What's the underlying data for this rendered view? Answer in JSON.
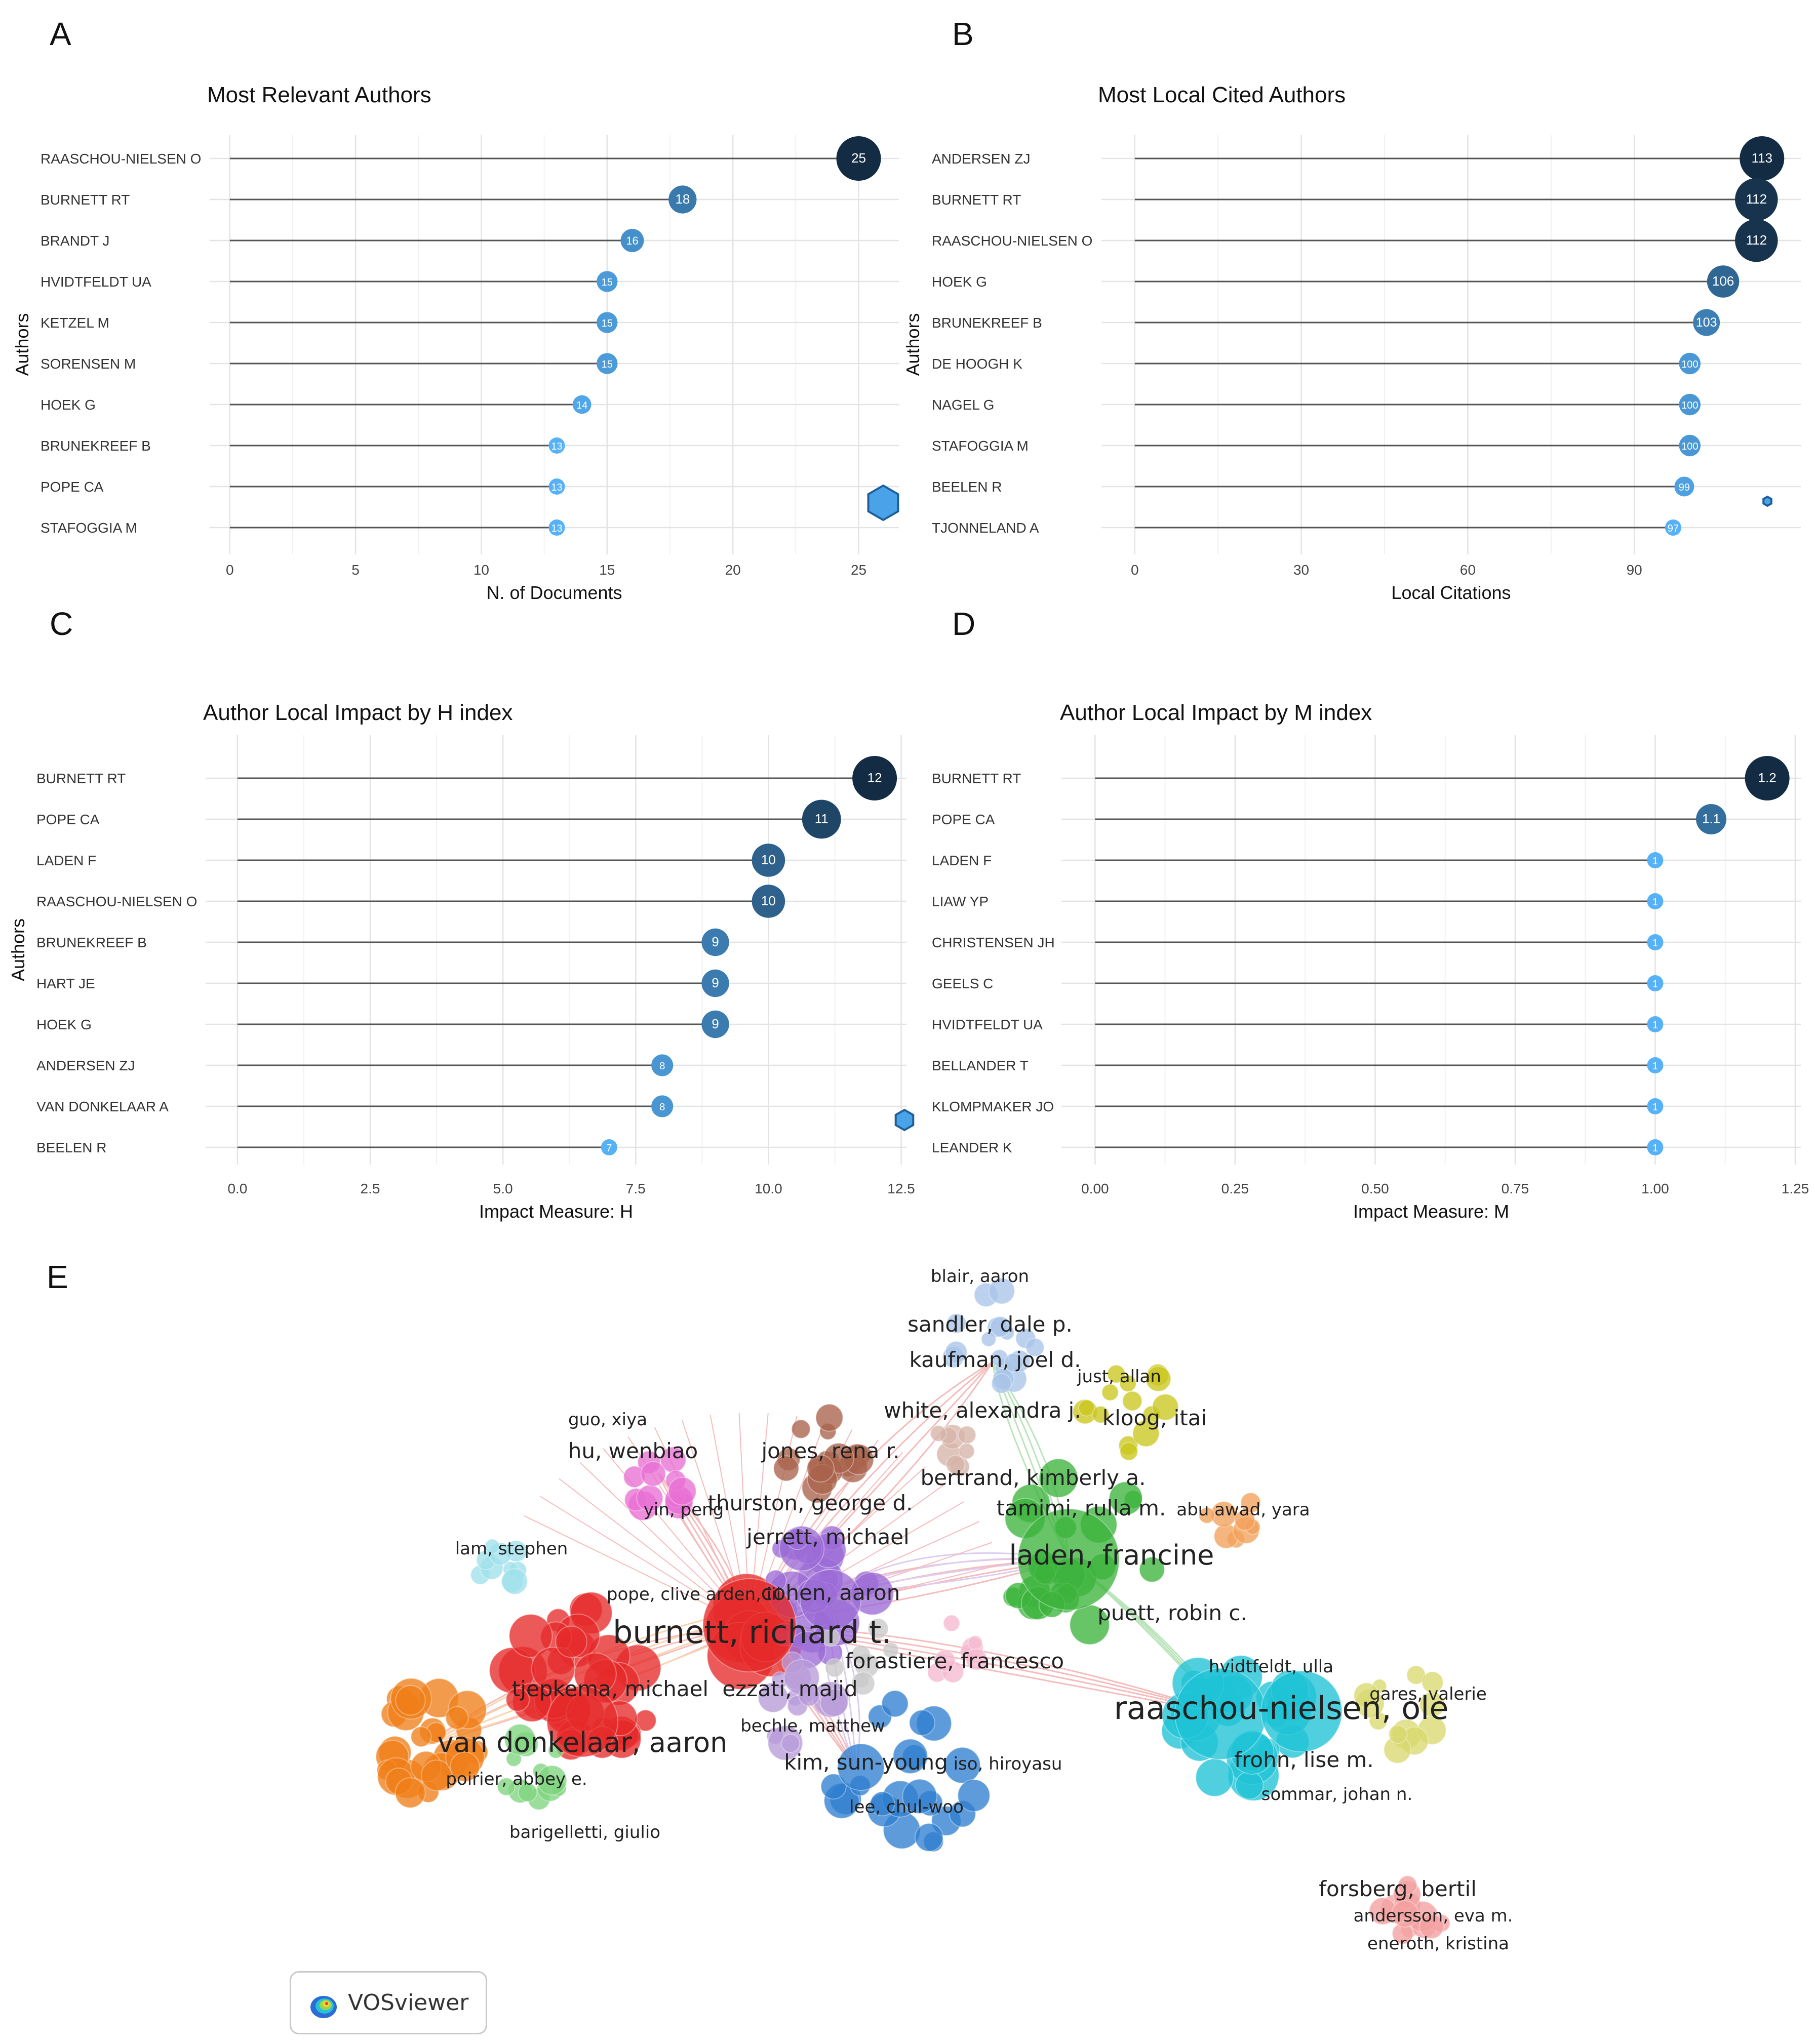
{
  "panel_letters": {
    "A": "A",
    "B": "B",
    "C": "C",
    "D": "D",
    "E": "E"
  },
  "colors": {
    "dark": "#132b43",
    "light": "#56b1f7",
    "segment": "#555555",
    "grid_major": "#e3e3e3",
    "grid_minor": "#f1f1f1"
  },
  "chart_data": [
    {
      "id": "A",
      "type": "lollipop",
      "title": "Most Relevant Authors",
      "xlabel": "N. of Documents",
      "ylabel": "Authors",
      "categories": [
        "RAASCHOU-NIELSEN O",
        "BURNETT RT",
        "BRANDT J",
        "HVIDTFELDT UA",
        "KETZEL M",
        "SORENSEN M",
        "HOEK G",
        "BRUNEKREEF B",
        "POPE CA",
        "STAFOGGIA M"
      ],
      "values": [
        25,
        18,
        16,
        15,
        15,
        15,
        14,
        13,
        13,
        13
      ],
      "value_labels": [
        "25",
        "18",
        "16",
        "15",
        "15",
        "15",
        "14",
        "13",
        "13",
        "13"
      ],
      "xlim": [
        -0.8,
        26.6
      ],
      "ticks": [
        0,
        5,
        10,
        15,
        20,
        25
      ],
      "tick_labels": [
        "0",
        "5",
        "10",
        "15",
        "20",
        "25"
      ],
      "color_range": [
        13,
        25
      ],
      "grid": true,
      "watermark_icon": "hexagon-logo-icon"
    },
    {
      "id": "B",
      "type": "lollipop",
      "title": "Most Local Cited Authors",
      "xlabel": "Local Citations",
      "ylabel": "Authors",
      "categories": [
        "ANDERSEN ZJ",
        "BURNETT RT",
        "RAASCHOU-NIELSEN O",
        "HOEK G",
        "BRUNEKREEF B",
        "DE HOOGH K",
        "NAGEL G",
        "STAFOGGIA M",
        "BEELEN R",
        "TJONNELAND A"
      ],
      "values": [
        113,
        112,
        112,
        106,
        103,
        100,
        100,
        100,
        99,
        97
      ],
      "value_labels": [
        "113",
        "112",
        "112",
        "106",
        "103",
        "100",
        "100",
        "100",
        "99",
        "97"
      ],
      "xlim": [
        -6,
        120
      ],
      "ticks": [
        0,
        30,
        60,
        90
      ],
      "tick_labels": [
        "0",
        "30",
        "60",
        "90"
      ],
      "color_range": [
        97,
        113
      ],
      "grid": true,
      "watermark_icon": "hexagon-logo-icon"
    },
    {
      "id": "C",
      "type": "lollipop",
      "title": "Author Local Impact by H index",
      "xlabel": "Impact Measure: H",
      "ylabel": "Authors",
      "categories": [
        "BURNETT RT",
        "POPE CA",
        "LADEN F",
        "RAASCHOU-NIELSEN O",
        "BRUNEKREEF B",
        "HART JE",
        "HOEK G",
        "ANDERSEN ZJ",
        "VAN DONKELAAR A",
        "BEELEN R"
      ],
      "values": [
        12,
        11,
        10,
        10,
        9,
        9,
        9,
        8,
        8,
        7
      ],
      "value_labels": [
        "12",
        "11",
        "10",
        "10",
        "9",
        "9",
        "9",
        "8",
        "8",
        "7"
      ],
      "xlim": [
        -0.6,
        12.6
      ],
      "ticks": [
        0,
        2.5,
        5,
        7.5,
        10,
        12.5
      ],
      "tick_labels": [
        "0.0",
        "2.5",
        "5.0",
        "7.5",
        "10.0",
        "12.5"
      ],
      "color_range": [
        7,
        12
      ],
      "grid": true,
      "watermark_icon": "hexagon-logo-icon"
    },
    {
      "id": "D",
      "type": "lollipop",
      "title": "Author Local Impact by M index",
      "xlabel": "Impact Measure: M",
      "ylabel": "",
      "categories": [
        "BURNETT RT",
        "POPE CA",
        "LADEN F",
        "LIAW YP",
        "CHRISTENSEN JH",
        "GEELS C",
        "HVIDTFELDT UA",
        "BELLANDER T",
        "KLOMPMAKER JO",
        "LEANDER K"
      ],
      "values": [
        1.2,
        1.1,
        1,
        1,
        1,
        1,
        1,
        1,
        1,
        1
      ],
      "value_labels": [
        "1.2",
        "1.1",
        "1",
        "1",
        "1",
        "1",
        "1",
        "1",
        "1",
        "1"
      ],
      "xlim": [
        -0.06,
        1.26
      ],
      "ticks": [
        0,
        0.25,
        0.5,
        0.75,
        1,
        1.25
      ],
      "tick_labels": [
        "0.00",
        "0.25",
        "0.50",
        "0.75",
        "1.00",
        "1.25"
      ],
      "color_range": [
        1,
        1.2
      ],
      "grid": true
    }
  ],
  "network": {
    "logo_text": "VOSviewer",
    "labels": [
      {
        "text": "blair, aaron",
        "size": "s"
      },
      {
        "text": "sandler, dale p.",
        "size": "m"
      },
      {
        "text": "kaufman, joel d.",
        "size": "m"
      },
      {
        "text": "just, allan",
        "size": "s"
      },
      {
        "text": "white, alexandra j.",
        "size": "m"
      },
      {
        "text": "kloog, itai",
        "size": "m"
      },
      {
        "text": "guo, xiya",
        "size": "s"
      },
      {
        "text": "hu, wenbiao",
        "size": "m"
      },
      {
        "text": "jones, rena r.",
        "size": "m"
      },
      {
        "text": "bertrand, kimberly a.",
        "size": "m"
      },
      {
        "text": "tamimi, rulla m.",
        "size": "m"
      },
      {
        "text": "abu awad, yara",
        "size": "s"
      },
      {
        "text": "thurston, george d.",
        "size": "m"
      },
      {
        "text": "yin, peng",
        "size": "s"
      },
      {
        "text": "jerrett, michael",
        "size": "m"
      },
      {
        "text": "laden, francine",
        "size": "l"
      },
      {
        "text": "lam, stephen",
        "size": "s"
      },
      {
        "text": "pope, clive arden, iii",
        "size": "s"
      },
      {
        "text": "cohen, aaron",
        "size": "m"
      },
      {
        "text": "puett, robin c.",
        "size": "m"
      },
      {
        "text": "burnett, richard t.",
        "size": "xl"
      },
      {
        "text": "forastiere, francesco",
        "size": "m"
      },
      {
        "text": "hvidtfeldt, ulla",
        "size": "s"
      },
      {
        "text": "tjepkema, michael",
        "size": "m"
      },
      {
        "text": "ezzati, majid",
        "size": "m"
      },
      {
        "text": "gares, valerie",
        "size": "s"
      },
      {
        "text": "raaschou-nielsen, ole",
        "size": "xl"
      },
      {
        "text": "bechle, matthew",
        "size": "s"
      },
      {
        "text": "van donkelaar, aaron",
        "size": "l"
      },
      {
        "text": "frohn, lise m.",
        "size": "m"
      },
      {
        "text": "kim, sun-young",
        "size": "m"
      },
      {
        "text": "iso, hiroyasu",
        "size": "s"
      },
      {
        "text": "poirier, abbey e.",
        "size": "s"
      },
      {
        "text": "sommar, johan n.",
        "size": "s"
      },
      {
        "text": "lee, chul-woo",
        "size": "s"
      },
      {
        "text": "barigelletti, giulio",
        "size": "s"
      },
      {
        "text": "forsberg, bertil",
        "size": "m"
      },
      {
        "text": "andersson, eva m.",
        "size": "s"
      },
      {
        "text": "eneroth, kristina",
        "size": "s"
      }
    ]
  }
}
